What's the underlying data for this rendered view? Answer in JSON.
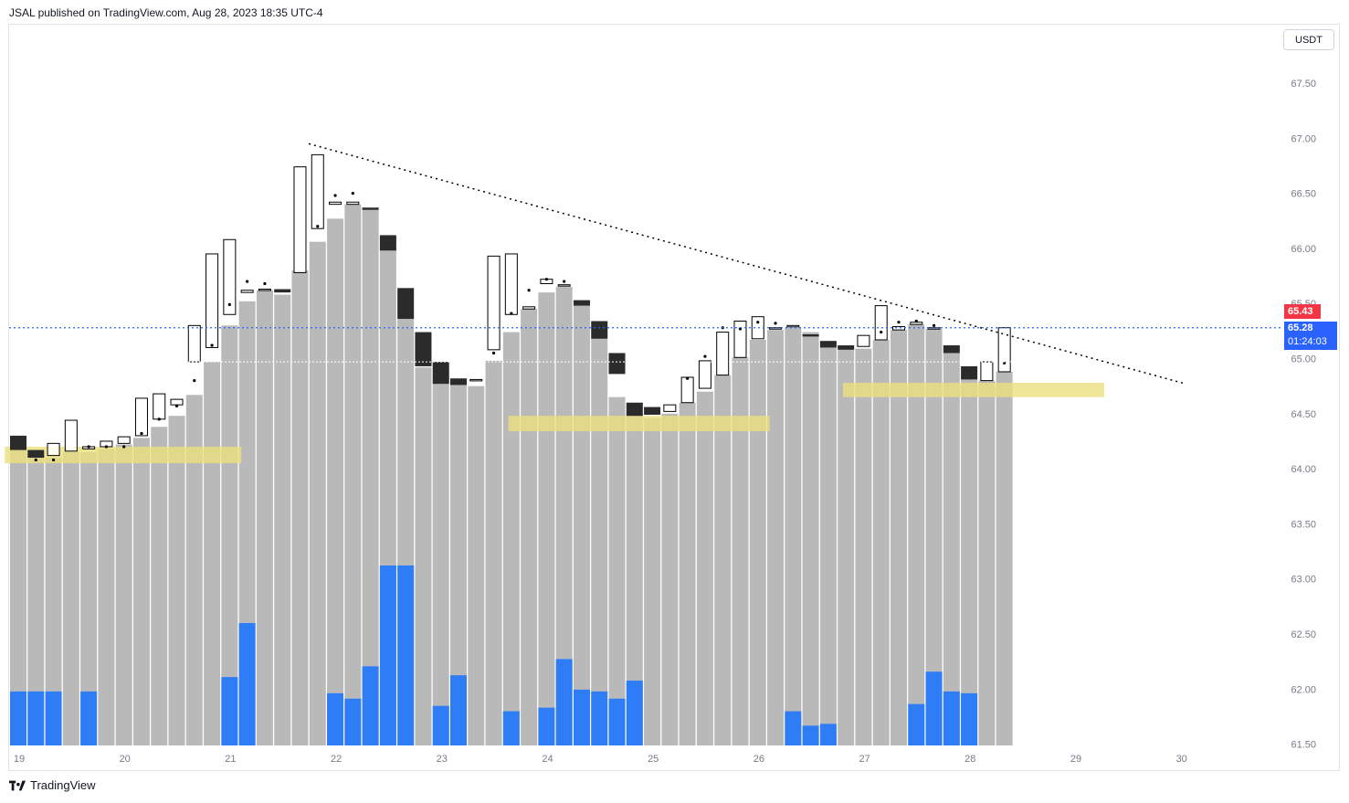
{
  "header": {
    "publisher": "JSAL published on TradingView.com, Aug 28, 2023 18:35 UTC-4"
  },
  "currency_button": {
    "label": "USDT"
  },
  "price_tags": {
    "last": "65.43",
    "current": "65.28",
    "countdown": "01:24:03"
  },
  "footer": {
    "brand": "TradingView"
  },
  "colors": {
    "bar_gray": "#b9b9b9",
    "volume_blue": "#2f7df6",
    "bear": "#2b2b2b",
    "bull_outline": "#000000",
    "zone": "#ebe07e",
    "price_line": "#2962ff",
    "red_tag": "#f23645"
  },
  "chart_data": {
    "type": "candlestick",
    "y_axis": {
      "min": 61.5,
      "max": 67.5,
      "ticks": [
        "67.50",
        "67.00",
        "66.50",
        "66.00",
        "65.50",
        "65.00",
        "64.50",
        "64.00",
        "63.50",
        "63.00",
        "62.50",
        "62.00",
        "61.50"
      ]
    },
    "x_axis": {
      "ticks": [
        "19",
        "20",
        "21",
        "22",
        "23",
        "24",
        "25",
        "26",
        "27",
        "28",
        "29",
        "30"
      ]
    },
    "gray_columns": [
      64.17,
      64.13,
      64.1,
      64.15,
      64.15,
      64.18,
      64.22,
      64.28,
      64.38,
      64.48,
      64.67,
      64.97,
      65.3,
      65.52,
      65.62,
      65.58,
      65.8,
      66.06,
      66.27,
      66.4,
      66.37,
      65.98,
      65.36,
      64.92,
      64.77,
      64.76,
      64.75,
      64.98,
      65.24,
      65.45,
      65.6,
      65.65,
      65.48,
      65.18,
      64.65,
      64.5,
      64.46,
      64.5,
      64.6,
      64.7,
      64.85,
      65.01,
      65.17,
      65.26,
      65.28,
      65.24,
      65.1,
      65.08,
      65.09,
      65.17,
      65.26,
      65.31,
      65.27,
      65.05,
      64.81,
      64.8,
      64.88
    ],
    "candles": [
      {
        "o": 64.3,
        "c": 64.17,
        "type": "bear"
      },
      {
        "o": 64.17,
        "c": 64.1,
        "type": "bear"
      },
      {
        "o": 64.12,
        "c": 64.23,
        "type": "bull"
      },
      {
        "o": 64.16,
        "c": 64.44,
        "type": "bull"
      },
      {
        "o": 64.18,
        "c": 64.2,
        "type": "bull"
      },
      {
        "o": 64.2,
        "c": 64.25,
        "type": "bull"
      },
      {
        "o": 64.23,
        "c": 64.29,
        "type": "bull"
      },
      {
        "o": 64.3,
        "c": 64.64,
        "type": "bull"
      },
      {
        "o": 64.45,
        "c": 64.68,
        "type": "bull"
      },
      {
        "o": 64.58,
        "c": 64.63,
        "type": "bull"
      },
      {
        "o": 64.97,
        "c": 65.3,
        "type": "bull"
      },
      {
        "o": 65.1,
        "c": 65.95,
        "type": "bull"
      },
      {
        "o": 65.4,
        "c": 66.08,
        "type": "bull"
      },
      {
        "o": 65.6,
        "c": 65.62,
        "type": "bull"
      },
      {
        "o": 65.62,
        "c": 65.63,
        "type": "bull"
      },
      {
        "o": 65.6,
        "c": 65.63,
        "type": "bear"
      },
      {
        "o": 65.78,
        "c": 66.74,
        "type": "bull"
      },
      {
        "o": 66.18,
        "c": 66.85,
        "type": "bull"
      },
      {
        "o": 66.4,
        "c": 66.42,
        "type": "bull"
      },
      {
        "o": 66.4,
        "c": 66.42,
        "type": "bull"
      },
      {
        "o": 66.37,
        "c": 66.35,
        "type": "bear"
      },
      {
        "o": 66.12,
        "c": 65.98,
        "type": "bear"
      },
      {
        "o": 65.64,
        "c": 65.36,
        "type": "bear"
      },
      {
        "o": 65.24,
        "c": 64.93,
        "type": "bear"
      },
      {
        "o": 64.97,
        "c": 64.77,
        "type": "bear"
      },
      {
        "o": 64.82,
        "c": 64.76,
        "type": "bear"
      },
      {
        "o": 64.8,
        "c": 64.81,
        "type": "bull"
      },
      {
        "o": 65.08,
        "c": 65.93,
        "type": "bull"
      },
      {
        "o": 65.4,
        "c": 65.95,
        "type": "bull"
      },
      {
        "o": 65.45,
        "c": 65.47,
        "type": "bull"
      },
      {
        "o": 65.68,
        "c": 65.72,
        "type": "bull"
      },
      {
        "o": 65.66,
        "c": 65.67,
        "type": "bull"
      },
      {
        "o": 65.53,
        "c": 65.48,
        "type": "bear"
      },
      {
        "o": 65.34,
        "c": 65.18,
        "type": "bear"
      },
      {
        "o": 65.05,
        "c": 64.86,
        "type": "bear"
      },
      {
        "o": 64.6,
        "c": 64.48,
        "type": "bear"
      },
      {
        "o": 64.56,
        "c": 64.49,
        "type": "bear"
      },
      {
        "o": 64.52,
        "c": 64.58,
        "type": "bull"
      },
      {
        "o": 64.6,
        "c": 64.83,
        "type": "bull"
      },
      {
        "o": 64.73,
        "c": 64.98,
        "type": "bull"
      },
      {
        "o": 64.85,
        "c": 65.24,
        "type": "bull"
      },
      {
        "o": 65.01,
        "c": 65.34,
        "type": "bull"
      },
      {
        "o": 65.18,
        "c": 65.38,
        "type": "bull"
      },
      {
        "o": 65.27,
        "c": 65.28,
        "type": "bull"
      },
      {
        "o": 65.29,
        "c": 65.3,
        "type": "bull"
      },
      {
        "o": 65.22,
        "c": 65.2,
        "type": "bear"
      },
      {
        "o": 65.16,
        "c": 65.1,
        "type": "bear"
      },
      {
        "o": 65.12,
        "c": 65.08,
        "type": "bear"
      },
      {
        "o": 65.11,
        "c": 65.21,
        "type": "bull"
      },
      {
        "o": 65.17,
        "c": 65.48,
        "type": "bull"
      },
      {
        "o": 65.26,
        "c": 65.29,
        "type": "bull"
      },
      {
        "o": 65.31,
        "c": 65.33,
        "type": "bull"
      },
      {
        "o": 65.27,
        "c": 65.28,
        "type": "bull"
      },
      {
        "o": 65.12,
        "c": 65.05,
        "type": "bear"
      },
      {
        "o": 64.93,
        "c": 64.81,
        "type": "bear"
      },
      {
        "o": 64.8,
        "c": 64.97,
        "type": "bull"
      },
      {
        "o": 64.88,
        "c": 65.28,
        "type": "bull"
      }
    ],
    "dots": [
      null,
      64.08,
      64.08,
      null,
      64.2,
      64.2,
      64.2,
      64.32,
      64.45,
      64.57,
      64.8,
      65.12,
      65.49,
      65.7,
      65.68,
      null,
      null,
      66.2,
      66.48,
      66.5,
      null,
      null,
      null,
      null,
      null,
      null,
      null,
      65.05,
      65.41,
      65.62,
      65.72,
      65.7,
      null,
      null,
      null,
      null,
      null,
      null,
      64.82,
      65.02,
      65.28,
      65.27,
      65.33,
      65.32,
      null,
      null,
      null,
      null,
      null,
      65.24,
      65.33,
      65.34,
      65.3,
      null,
      null,
      null,
      64.96
    ],
    "volume": [
      0.3,
      0.3,
      0.3,
      0,
      0.3,
      0,
      0,
      0,
      0,
      0,
      0,
      0,
      0.38,
      0.68,
      0,
      0,
      0,
      0,
      0.29,
      0.26,
      0.44,
      1.0,
      1.0,
      0,
      0.22,
      0.39,
      0,
      0,
      0.19,
      0,
      0.21,
      0.48,
      0.31,
      0.3,
      0.26,
      0.36,
      0,
      0,
      0,
      0,
      0,
      0,
      0,
      0,
      0.19,
      0.11,
      0.12,
      0,
      0,
      0,
      0,
      0.23,
      0.41,
      0.3,
      0.29,
      0,
      0
    ],
    "zones": [
      {
        "x0": -0.3,
        "x1": 12.2,
        "y0": 64.05,
        "y1": 64.2
      },
      {
        "x0": 28.3,
        "x1": 42.2,
        "y0": 64.34,
        "y1": 64.48
      },
      {
        "x0": 47.3,
        "x1": 61.2,
        "y0": 64.65,
        "y1": 64.78
      }
    ],
    "trendline": {
      "x0": 16.5,
      "y0": 66.95,
      "x1": 66.3,
      "y1": 64.77
    },
    "price_line": 65.28,
    "white_line": 64.97
  }
}
